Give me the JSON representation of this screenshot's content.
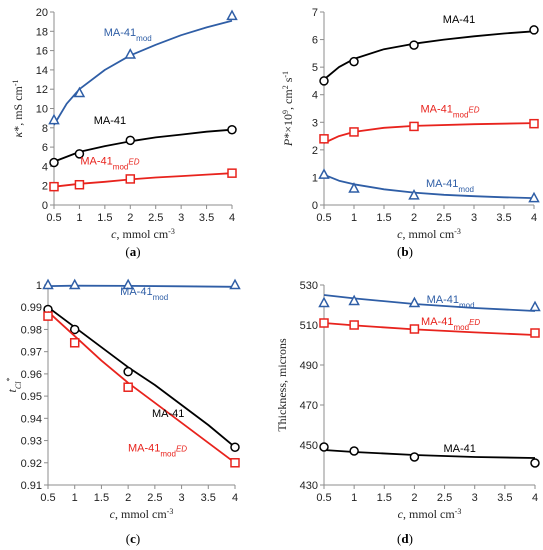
{
  "colors": {
    "black": "#000000",
    "red": "#e8231d",
    "blue": "#2f5ea6",
    "axis": "#8c8c8c"
  },
  "chart_data": [
    {
      "type": "scatter",
      "panel_label": "(a)",
      "ylabel": {
        "main": "κ*, mS cm",
        "sup": "-1"
      },
      "xlabel": {
        "main": "c, mmol cm",
        "sup": "-3"
      },
      "xlim": [
        0.5,
        4
      ],
      "ylim": [
        0,
        20
      ],
      "xticks": [
        0.5,
        1,
        1.5,
        2,
        2.5,
        3,
        3.5,
        4
      ],
      "yticks": [
        0,
        2,
        4,
        6,
        8,
        10,
        12,
        14,
        16,
        18,
        20
      ],
      "series": [
        {
          "name": "MA-41",
          "name_base": "MA-41",
          "name_sub": "",
          "color": "#000000",
          "marker": "circle",
          "x": [
            0.5,
            1,
            2,
            4
          ],
          "y": [
            4.4,
            5.3,
            6.7,
            7.8
          ],
          "fit": [
            [
              0.5,
              4.5
            ],
            [
              1,
              5.5
            ],
            [
              1.5,
              6.1
            ],
            [
              2,
              6.6
            ],
            [
              2.5,
              7.0
            ],
            [
              3,
              7.3
            ],
            [
              3.5,
              7.6
            ],
            [
              4,
              7.8
            ]
          ]
        },
        {
          "name": "MA-41modED",
          "name_base": "MA-41",
          "name_sub": "modED",
          "color": "#e8231d",
          "marker": "square",
          "x": [
            0.5,
            1,
            2,
            4
          ],
          "y": [
            1.9,
            2.1,
            2.7,
            3.3
          ],
          "fit": [
            [
              0.5,
              1.9
            ],
            [
              1,
              2.2
            ],
            [
              1.5,
              2.4
            ],
            [
              2,
              2.65
            ],
            [
              2.5,
              2.85
            ],
            [
              3,
              3.0
            ],
            [
              3.5,
              3.15
            ],
            [
              4,
              3.3
            ]
          ]
        },
        {
          "name": "MA-41mod",
          "name_base": "MA-41",
          "name_sub": "mod",
          "color": "#2f5ea6",
          "marker": "triangle",
          "x": [
            0.5,
            1,
            2,
            4
          ],
          "y": [
            8.8,
            11.6,
            15.6,
            19.6
          ],
          "fit": [
            [
              0.5,
              8.3
            ],
            [
              0.75,
              10.5
            ],
            [
              1,
              12.0
            ],
            [
              1.5,
              14.0
            ],
            [
              2,
              15.5
            ],
            [
              2.5,
              16.6
            ],
            [
              3,
              17.6
            ],
            [
              3.5,
              18.4
            ],
            [
              4,
              19.1
            ]
          ]
        }
      ],
      "labels": [
        {
          "series": 2,
          "x": 1.95,
          "y": 17.5
        },
        {
          "series": 0,
          "x": 1.6,
          "y": 8.4
        },
        {
          "series": 1,
          "x": 1.6,
          "y": 4.2
        }
      ]
    },
    {
      "type": "scatter",
      "panel_label": "(b)",
      "ylabel": {
        "main": "P*×10",
        "sup1": "9",
        "mid": ", cm",
        "sup2": "2",
        "tail": " s",
        "sup3": "-1"
      },
      "xlabel": {
        "main": "c, mmol cm",
        "sup": "-3"
      },
      "xlim": [
        0.5,
        4
      ],
      "ylim": [
        0,
        7
      ],
      "xticks": [
        0.5,
        1,
        1.5,
        2,
        2.5,
        3,
        3.5,
        4
      ],
      "yticks": [
        0,
        1,
        2,
        3,
        4,
        5,
        6,
        7
      ],
      "series": [
        {
          "name": "MA-41",
          "name_base": "MA-41",
          "name_sub": "",
          "color": "#000000",
          "marker": "circle",
          "x": [
            0.5,
            1,
            2,
            4
          ],
          "y": [
            4.5,
            5.2,
            5.8,
            6.35
          ],
          "fit": [
            [
              0.5,
              4.55
            ],
            [
              0.75,
              5.0
            ],
            [
              1,
              5.3
            ],
            [
              1.5,
              5.65
            ],
            [
              2,
              5.85
            ],
            [
              2.5,
              6.0
            ],
            [
              3,
              6.12
            ],
            [
              3.5,
              6.22
            ],
            [
              4,
              6.3
            ]
          ]
        },
        {
          "name": "MA-41modED",
          "name_base": "MA-41",
          "name_sub": "modED",
          "color": "#e8231d",
          "marker": "square",
          "x": [
            0.5,
            1,
            2,
            4
          ],
          "y": [
            2.4,
            2.65,
            2.85,
            2.95
          ],
          "fit": [
            [
              0.5,
              2.25
            ],
            [
              0.75,
              2.5
            ],
            [
              1,
              2.65
            ],
            [
              1.5,
              2.8
            ],
            [
              2,
              2.87
            ],
            [
              3,
              2.93
            ],
            [
              4,
              2.97
            ]
          ]
        },
        {
          "name": "MA-41mod",
          "name_base": "MA-41",
          "name_sub": "mod",
          "color": "#2f5ea6",
          "marker": "triangle",
          "x": [
            0.5,
            1,
            2,
            4
          ],
          "y": [
            1.1,
            0.6,
            0.35,
            0.25
          ],
          "fit": [
            [
              0.5,
              1.1
            ],
            [
              0.75,
              0.88
            ],
            [
              1,
              0.75
            ],
            [
              1.5,
              0.57
            ],
            [
              2,
              0.45
            ],
            [
              2.5,
              0.37
            ],
            [
              3,
              0.32
            ],
            [
              3.5,
              0.28
            ],
            [
              4,
              0.25
            ]
          ]
        }
      ],
      "labels": [
        {
          "series": 0,
          "x": 2.75,
          "y": 6.6
        },
        {
          "series": 1,
          "x": 2.6,
          "y": 3.35
        },
        {
          "series": 2,
          "x": 2.6,
          "y": 0.65
        }
      ]
    },
    {
      "type": "scatter",
      "panel_label": "(c)",
      "ylabel": {
        "main": "t",
        "sub": "Cl",
        "sup": "*"
      },
      "xlabel": {
        "main": "c, mmol cm",
        "sup": "-3"
      },
      "xlim": [
        0.5,
        4
      ],
      "ylim": [
        0.91,
        1.0
      ],
      "xticks": [
        0.5,
        1,
        1.5,
        2,
        2.5,
        3,
        3.5,
        4
      ],
      "yticks": [
        0.91,
        0.92,
        0.93,
        0.94,
        0.95,
        0.96,
        0.97,
        0.98,
        0.99,
        1
      ],
      "series": [
        {
          "name": "MA-41",
          "name_base": "MA-41",
          "name_sub": "",
          "color": "#000000",
          "marker": "circle",
          "x": [
            0.5,
            1,
            2,
            4
          ],
          "y": [
            0.989,
            0.98,
            0.961,
            0.927
          ],
          "fit": [
            [
              0.5,
              0.99
            ],
            [
              1,
              0.981
            ],
            [
              1.5,
              0.972
            ],
            [
              2,
              0.963
            ],
            [
              2.5,
              0.955
            ],
            [
              3,
              0.946
            ],
            [
              3.5,
              0.937
            ],
            [
              4,
              0.927
            ]
          ]
        },
        {
          "name": "MA-41modED",
          "name_base": "MA-41",
          "name_sub": "modED",
          "color": "#e8231d",
          "marker": "square",
          "x": [
            0.5,
            1,
            2,
            4
          ],
          "y": [
            0.986,
            0.974,
            0.954,
            0.92
          ],
          "fit": [
            [
              0.5,
              0.988
            ],
            [
              1,
              0.977
            ],
            [
              1.5,
              0.966
            ],
            [
              2,
              0.956
            ],
            [
              2.5,
              0.947
            ],
            [
              3,
              0.938
            ],
            [
              3.5,
              0.929
            ],
            [
              4,
              0.92
            ]
          ]
        },
        {
          "name": "MA-41mod",
          "name_base": "MA-41",
          "name_sub": "mod",
          "color": "#2f5ea6",
          "marker": "triangle",
          "x": [
            0.5,
            1,
            2,
            4
          ],
          "y": [
            1.0,
            1.0,
            1.0,
            1.0
          ],
          "fit": [
            [
              0.5,
              0.9995
            ],
            [
              1,
              0.9997
            ],
            [
              2,
              0.9996
            ],
            [
              3,
              0.9994
            ],
            [
              4,
              0.9992
            ]
          ]
        }
      ],
      "labels": [
        {
          "series": 2,
          "x": 2.3,
          "y": 0.9955
        },
        {
          "series": 0,
          "x": 2.75,
          "y": 0.9405
        },
        {
          "series": 1,
          "x": 2.55,
          "y": 0.925
        }
      ]
    },
    {
      "type": "scatter",
      "panel_label": "(d)",
      "ylabel": {
        "main": "Thickness, microns"
      },
      "xlabel": {
        "main": "c, mmol cm",
        "sup": "-3"
      },
      "xlim": [
        0.5,
        4
      ],
      "ylim": [
        430,
        530
      ],
      "xticks": [
        0.5,
        1,
        1.5,
        2,
        2.5,
        3,
        3.5,
        4
      ],
      "yticks": [
        430,
        450,
        470,
        490,
        510,
        530
      ],
      "series": [
        {
          "name": "MA-41",
          "name_base": "MA-41",
          "name_sub": "",
          "color": "#000000",
          "marker": "circle",
          "x": [
            0.5,
            1,
            2,
            4
          ],
          "y": [
            449,
            447,
            444,
            441
          ],
          "fit": [
            [
              0.5,
              447.5
            ],
            [
              1,
              446.5
            ],
            [
              2,
              445
            ],
            [
              3,
              444
            ],
            [
              4,
              443.5
            ]
          ]
        },
        {
          "name": "MA-41modED",
          "name_base": "MA-41",
          "name_sub": "modED",
          "color": "#e8231d",
          "marker": "square",
          "x": [
            0.5,
            1,
            2,
            4
          ],
          "y": [
            511,
            510,
            508,
            506
          ],
          "fit": [
            [
              0.5,
              511
            ],
            [
              1,
              509.8
            ],
            [
              2,
              507.8
            ],
            [
              3,
              506.3
            ],
            [
              4,
              505
            ]
          ]
        },
        {
          "name": "MA-41mod",
          "name_base": "MA-41",
          "name_sub": "mod",
          "color": "#2f5ea6",
          "marker": "triangle",
          "x": [
            0.5,
            1,
            2,
            4
          ],
          "y": [
            521,
            522,
            521,
            519
          ],
          "fit": [
            [
              0.5,
              525
            ],
            [
              1,
              523.3
            ],
            [
              2,
              520.5
            ],
            [
              3,
              518.5
            ],
            [
              4,
              517
            ]
          ]
        }
      ],
      "labels": [
        {
          "series": 2,
          "x": 2.6,
          "y": 521
        },
        {
          "series": 1,
          "x": 2.6,
          "y": 510
        },
        {
          "series": 0,
          "x": 2.75,
          "y": 446.5
        }
      ]
    }
  ]
}
